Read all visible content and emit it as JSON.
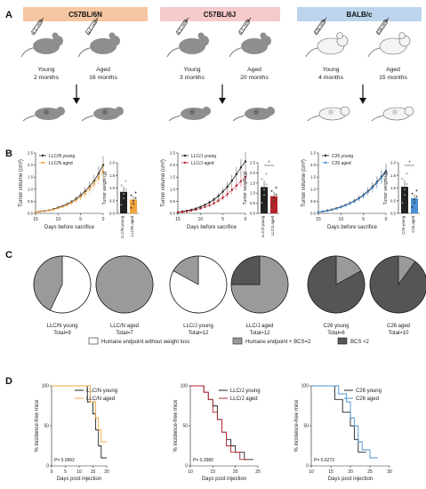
{
  "panels": {
    "a": "A",
    "b": "B",
    "c": "C",
    "d": "D"
  },
  "colors": {
    "nature": "#f5c6a1",
    "jax": "#f6c9cb",
    "balb": "#bcd4ec",
    "grey_mouse": "#8e8e8e",
    "white_mouse": "#f4f4f4",
    "pie_white": "#ffffff",
    "pie_light": "#9a9a9a",
    "pie_dark": "#555555",
    "black": "#222222",
    "orange": "#f0a33a",
    "red": "#b5232c",
    "blue": "#4a8fd6"
  },
  "strains": [
    {
      "name": "C57BL/6N",
      "cell": "LLC cells",
      "young": "Young",
      "young_age": "2 months",
      "aged": "Aged",
      "aged_age": "16 months"
    },
    {
      "name": "C57BL/6J",
      "cell": "LLC cells",
      "young": "Young",
      "young_age": "3 months",
      "aged": "Aged",
      "aged_age": "20 months"
    },
    {
      "name": "BALB/c",
      "cell": "C26 cells",
      "young": "Young",
      "young_age": "4 months",
      "aged": "Aged",
      "aged_age": "15 months"
    }
  ],
  "chart_data": [
    {
      "type": "line",
      "panel": "B",
      "xlabel": "Days before sacrifice",
      "ylabel": "Tumor volume (cm³)",
      "xlim": [
        15,
        0
      ],
      "ylim": [
        0,
        2.5
      ],
      "xticks": [
        "15",
        "10",
        "5",
        "0"
      ],
      "yticks": [
        "0.0",
        "0.5",
        "1.0",
        "1.5",
        "2.0",
        "2.5"
      ],
      "x": [
        15,
        14,
        13,
        12,
        11,
        10,
        9,
        8,
        7,
        6,
        5,
        4,
        3,
        2,
        1,
        0
      ],
      "series": [
        {
          "name": "LLC/N young",
          "values": [
            0.05,
            0.08,
            0.1,
            0.13,
            0.18,
            0.24,
            0.3,
            0.38,
            0.48,
            0.6,
            0.75,
            0.92,
            1.12,
            1.35,
            1.65,
            2.0
          ]
        },
        {
          "name": "LLC/N aged",
          "values": [
            0.05,
            0.07,
            0.09,
            0.12,
            0.16,
            0.21,
            0.27,
            0.34,
            0.43,
            0.54,
            0.67,
            0.82,
            1.0,
            1.22,
            1.48,
            1.75
          ]
        }
      ]
    },
    {
      "type": "bar",
      "panel": "B",
      "ylabel": "Tumor weight (g)",
      "ylim": [
        0,
        2.0
      ],
      "yticks": [
        "0.0",
        "0.5",
        "1.0",
        "1.5",
        "2.0"
      ],
      "categories": [
        "LLC/N young",
        "LLC/N aged"
      ],
      "values": [
        0.85,
        0.55
      ],
      "significance": ""
    },
    {
      "type": "line",
      "panel": "B",
      "xlabel": "Days before sacrifice",
      "ylabel": "Tumor volume (cm³)",
      "xlim": [
        15,
        0
      ],
      "ylim": [
        0,
        2.5
      ],
      "xticks": [
        "15",
        "10",
        "5",
        "0"
      ],
      "yticks": [
        "0.0",
        "0.5",
        "1.0",
        "1.5",
        "2.0",
        "2.5"
      ],
      "x": [
        15,
        14,
        13,
        12,
        11,
        10,
        9,
        8,
        7,
        6,
        5,
        4,
        3,
        2,
        1,
        0
      ],
      "series": [
        {
          "name": "LLC/J young",
          "values": [
            0.05,
            0.08,
            0.11,
            0.15,
            0.2,
            0.27,
            0.35,
            0.45,
            0.57,
            0.72,
            0.9,
            1.1,
            1.35,
            1.62,
            1.9,
            2.15
          ]
        },
        {
          "name": "LLC/J aged",
          "values": [
            0.04,
            0.06,
            0.08,
            0.11,
            0.15,
            0.2,
            0.26,
            0.33,
            0.42,
            0.53,
            0.65,
            0.8,
            0.97,
            1.15,
            1.33,
            1.5
          ]
        }
      ]
    },
    {
      "type": "bar",
      "panel": "B",
      "ylabel": "Tumor weight (g)",
      "ylim": [
        0,
        2.5
      ],
      "yticks": [
        "0.0",
        "0.5",
        "1.0",
        "1.5",
        "2.0",
        "2.5"
      ],
      "categories": [
        "LLC/J young",
        "LLC/J aged"
      ],
      "values": [
        1.3,
        0.85
      ],
      "significance": "*"
    },
    {
      "type": "line",
      "panel": "B",
      "xlabel": "Days before sacrifice",
      "ylabel": "Tumor volume (cm³)",
      "xlim": [
        15,
        0
      ],
      "ylim": [
        0,
        2.5
      ],
      "xticks": [
        "15",
        "10",
        "5",
        "0"
      ],
      "yticks": [
        "0.0",
        "0.5",
        "1.0",
        "1.5",
        "2.0",
        "2.5"
      ],
      "x": [
        15,
        14,
        13,
        12,
        11,
        10,
        9,
        8,
        7,
        6,
        5,
        4,
        3,
        2,
        1,
        0
      ],
      "series": [
        {
          "name": "C26 young",
          "values": [
            0.05,
            0.08,
            0.12,
            0.16,
            0.21,
            0.27,
            0.34,
            0.42,
            0.52,
            0.63,
            0.76,
            0.92,
            1.1,
            1.3,
            1.52,
            1.75
          ]
        },
        {
          "name": "C26 aged",
          "values": [
            0.05,
            0.07,
            0.1,
            0.14,
            0.19,
            0.25,
            0.32,
            0.4,
            0.49,
            0.6,
            0.73,
            0.88,
            1.05,
            1.25,
            1.47,
            1.7
          ]
        }
      ]
    },
    {
      "type": "bar",
      "panel": "B",
      "ylabel": "Tumor weight (g)",
      "ylim": [
        0,
        2.0
      ],
      "yticks": [
        "0.0",
        "0.5",
        "1.0",
        "1.5",
        "2.0"
      ],
      "categories": [
        "C26 young",
        "C26 aged"
      ],
      "values": [
        1.05,
        0.6
      ],
      "significance": "*"
    },
    {
      "type": "pie",
      "panel": "C",
      "label": "LLC/N young",
      "total": "Total=9",
      "values": [
        0.57,
        0.43,
        0
      ]
    },
    {
      "type": "pie",
      "panel": "C",
      "label": "LLC/N aged",
      "total": "Total=7",
      "values": [
        0.0,
        1.0,
        0
      ]
    },
    {
      "type": "pie",
      "panel": "C",
      "label": "LLC/J young",
      "total": "Total=12",
      "values": [
        0.83,
        0.17,
        0
      ]
    },
    {
      "type": "pie",
      "panel": "C",
      "label": "LLC/J aged",
      "total": "Total=12",
      "values": [
        0.0,
        0.75,
        0.25
      ]
    },
    {
      "type": "pie",
      "panel": "C",
      "label": "C26 young",
      "total": "Total=6",
      "values": [
        0.0,
        0.17,
        0.83
      ]
    },
    {
      "type": "pie",
      "panel": "C",
      "label": "C26 aged",
      "total": "Total=10",
      "values": [
        0.0,
        0.1,
        0.9
      ]
    },
    {
      "type": "line",
      "panel": "D",
      "xlabel": "Days post injection",
      "ylabel": "% incidence-free mice",
      "xlim": [
        0,
        20
      ],
      "ylim": [
        0,
        100
      ],
      "xticks": [
        "0",
        "5",
        "10",
        "15",
        "20"
      ],
      "yticks": [
        "0",
        "50",
        "100"
      ],
      "pvalue": "P= 0.9962",
      "series": [
        {
          "name": "LLC/N young",
          "x": [
            0,
            13,
            13,
            14,
            14,
            15,
            15,
            16,
            16,
            17,
            17,
            18,
            18,
            20
          ],
          "values": [
            100,
            100,
            80,
            80,
            80,
            80,
            65,
            65,
            45,
            45,
            25,
            25,
            10,
            10
          ]
        },
        {
          "name": "LLC/N aged",
          "x": [
            0,
            14,
            14,
            16,
            16,
            17,
            17,
            18,
            18,
            20
          ],
          "values": [
            100,
            100,
            80,
            80,
            60,
            60,
            45,
            45,
            30,
            30
          ]
        }
      ]
    },
    {
      "type": "line",
      "panel": "D",
      "xlabel": "Days post injection",
      "ylabel": "% incidence-free mice",
      "xlim": [
        10,
        25
      ],
      "ylim": [
        0,
        100
      ],
      "xticks": [
        "10",
        "15",
        "20",
        "25"
      ],
      "yticks": [
        "0",
        "50",
        "100"
      ],
      "pvalue": "P= 0.3980",
      "series": [
        {
          "name": "LLC/J young",
          "x": [
            10,
            13,
            13,
            14,
            14,
            15,
            15,
            16,
            16,
            17,
            17,
            18,
            18,
            19,
            19,
            20,
            20,
            22,
            22,
            24
          ],
          "values": [
            100,
            100,
            92,
            92,
            83,
            83,
            75,
            75,
            58,
            58,
            42,
            42,
            33,
            33,
            25,
            25,
            17,
            17,
            8,
            8
          ]
        },
        {
          "name": "LLC/J aged",
          "x": [
            10,
            13,
            13,
            14,
            14,
            15,
            15,
            16,
            16,
            17,
            17,
            18,
            18,
            19,
            19,
            21,
            21,
            23
          ],
          "values": [
            100,
            100,
            92,
            92,
            83,
            83,
            67,
            67,
            58,
            58,
            42,
            42,
            25,
            25,
            17,
            17,
            8,
            8
          ]
        }
      ]
    },
    {
      "type": "line",
      "panel": "D",
      "xlabel": "Days post injection",
      "ylabel": "% incidence-free mice",
      "xlim": [
        10,
        30
      ],
      "ylim": [
        0,
        100
      ],
      "xticks": [
        "10",
        "15",
        "20",
        "25",
        "30"
      ],
      "yticks": [
        "0",
        "50",
        "100"
      ],
      "pvalue": "P= 0.6273",
      "series": [
        {
          "name": "C26 young",
          "x": [
            10,
            16,
            16,
            18,
            18,
            20,
            20,
            21,
            21,
            22,
            22,
            24
          ],
          "values": [
            100,
            100,
            83,
            83,
            67,
            67,
            50,
            50,
            33,
            33,
            17,
            17
          ]
        },
        {
          "name": "C26 aged",
          "x": [
            10,
            17,
            17,
            19,
            19,
            20,
            20,
            21,
            21,
            22,
            22,
            23,
            23,
            25,
            25,
            27
          ],
          "values": [
            100,
            100,
            90,
            90,
            80,
            80,
            60,
            60,
            50,
            50,
            30,
            30,
            20,
            20,
            10,
            10
          ]
        }
      ]
    }
  ],
  "legend_c": [
    {
      "label": "Humane endpoint without weight loss",
      "color": "#ffffff"
    },
    {
      "label": "Humane endpoint + BCS=2",
      "color": "#9a9a9a"
    },
    {
      "label": "BCS <2",
      "color": "#555555"
    }
  ]
}
